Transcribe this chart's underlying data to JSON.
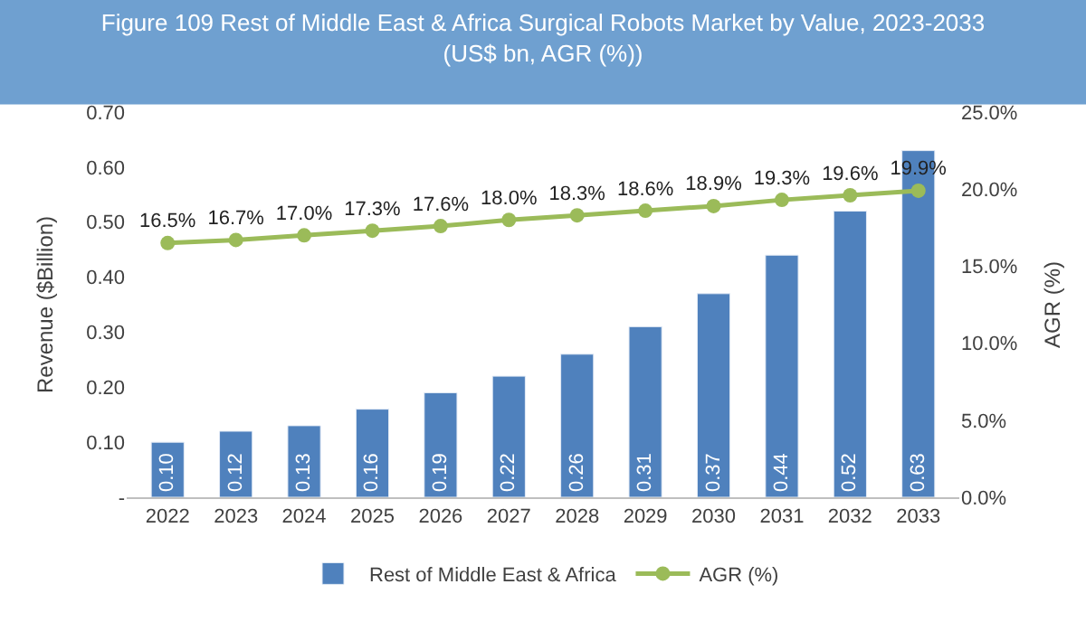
{
  "chart_data": {
    "type": "bar",
    "title": "Figure 109 Rest of Middle East & Africa Surgical Robots Market by Value, 2023-2033 (US$ bn, AGR (%))",
    "ylabel": "Revenue ($Billion)",
    "y2label": "AGR (%)",
    "categories": [
      "2022",
      "2023",
      "2024",
      "2025",
      "2026",
      "2027",
      "2028",
      "2029",
      "2030",
      "2031",
      "2032",
      "2033"
    ],
    "series": [
      {
        "name": "Rest of Middle East & Africa",
        "color": "#4f81bd",
        "values": [
          0.1,
          0.12,
          0.13,
          0.16,
          0.19,
          0.22,
          0.26,
          0.31,
          0.37,
          0.44,
          0.52,
          0.63
        ],
        "value_labels": [
          "0.10",
          "0.12",
          "0.13",
          "0.16",
          "0.19",
          "0.22",
          "0.26",
          "0.31",
          "0.37",
          "0.44",
          "0.52",
          "0.63"
        ]
      },
      {
        "name": "AGR (%)",
        "type": "line",
        "axis": "y2",
        "color": "#9bbb59",
        "marker": "circle",
        "values": [
          16.5,
          16.7,
          17.0,
          17.3,
          17.6,
          18.0,
          18.3,
          18.6,
          18.9,
          19.3,
          19.6,
          19.9
        ],
        "value_labels": [
          "16.5%",
          "16.7%",
          "17.0%",
          "17.3%",
          "17.6%",
          "18.0%",
          "18.3%",
          "18.6%",
          "18.9%",
          "19.3%",
          "19.6%",
          "19.9%"
        ]
      }
    ],
    "ylim": [
      0,
      0.7
    ],
    "yticks": [
      {
        "value": 0,
        "label": "-"
      },
      {
        "value": 0.1,
        "label": "0.10"
      },
      {
        "value": 0.2,
        "label": "0.20"
      },
      {
        "value": 0.3,
        "label": "0.30"
      },
      {
        "value": 0.4,
        "label": "0.40"
      },
      {
        "value": 0.5,
        "label": "0.50"
      },
      {
        "value": 0.6,
        "label": "0.60"
      },
      {
        "value": 0.7,
        "label": "0.70"
      }
    ],
    "y2lim": [
      0,
      25
    ],
    "y2ticks": [
      {
        "value": 0,
        "label": "0.0%"
      },
      {
        "value": 5,
        "label": "5.0%"
      },
      {
        "value": 10,
        "label": "10.0%"
      },
      {
        "value": 15,
        "label": "15.0%"
      },
      {
        "value": 20,
        "label": "20.0%"
      },
      {
        "value": 25,
        "label": "25.0%"
      }
    ],
    "legend": "bottom"
  }
}
